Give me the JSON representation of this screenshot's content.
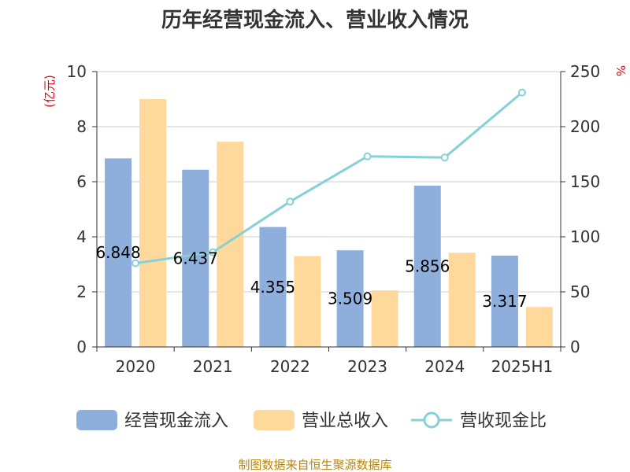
{
  "title": "历年经营现金流入、营业收入情况",
  "source": "制图数据来自恒生聚源数据库",
  "colors": {
    "cash": "#8eaedc",
    "revenue": "#fed99b",
    "ratio": "#86d1d7",
    "unit": "#e60012",
    "source": "#b8860b"
  },
  "chart_data": {
    "type": "bar",
    "title": "历年经营现金流入、营业收入情况",
    "categories": [
      "2020",
      "2021",
      "2022",
      "2023",
      "2024",
      "2025H1"
    ],
    "y_left": {
      "unit": "(亿元)",
      "min": 0,
      "max": 10,
      "ticks": [
        0,
        2,
        4,
        6,
        8,
        10
      ]
    },
    "y_right": {
      "unit": "%",
      "min": 0,
      "max": 250,
      "ticks": [
        0,
        50,
        100,
        150,
        200,
        250
      ]
    },
    "grid": true,
    "legend_position": "bottom",
    "series": [
      {
        "name": "经营现金流入",
        "type": "bar",
        "axis": "left",
        "values": [
          6.848,
          6.437,
          4.355,
          3.509,
          5.856,
          3.317
        ],
        "labels": [
          "6.848",
          "6.437",
          "4.355",
          "3.509",
          "5.856",
          "3.317"
        ]
      },
      {
        "name": "营业总收入",
        "type": "bar",
        "axis": "left",
        "values": [
          9.0,
          7.45,
          3.3,
          2.05,
          3.42,
          1.45
        ]
      },
      {
        "name": "营收现金比",
        "type": "line",
        "axis": "right",
        "values": [
          76,
          86,
          132,
          173,
          172,
          231
        ]
      }
    ]
  }
}
